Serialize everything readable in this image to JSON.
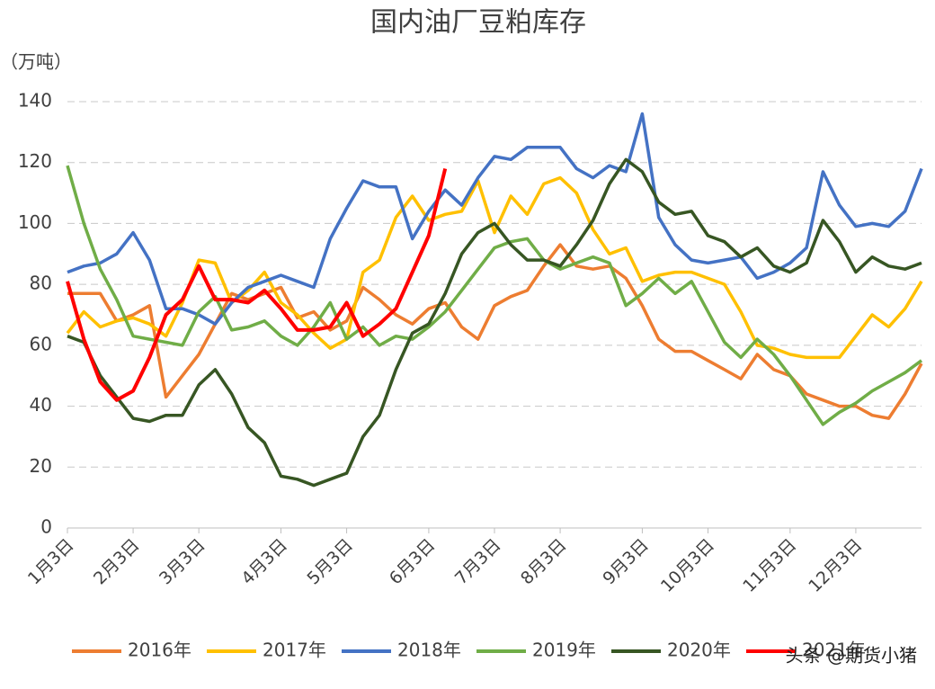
{
  "chart_data": {
    "type": "line",
    "title": "国内油厂豆粕库存",
    "y_label": "（万吨）",
    "categories": [
      "1月3日",
      null,
      null,
      null,
      "2月3日",
      null,
      null,
      null,
      "3月3日",
      null,
      null,
      null,
      null,
      "4月3日",
      null,
      null,
      null,
      "5月3日",
      null,
      null,
      null,
      null,
      "6月3日",
      null,
      null,
      null,
      "7月3日",
      null,
      null,
      null,
      "8月3日",
      null,
      null,
      null,
      null,
      "9月3日",
      null,
      null,
      null,
      "10月3日",
      null,
      null,
      null,
      null,
      "11月3日",
      null,
      null,
      null,
      "12月3日",
      null,
      null,
      null,
      null
    ],
    "ylim": [
      0,
      140
    ],
    "yticks": [
      0,
      20,
      40,
      60,
      80,
      100,
      120,
      140
    ],
    "grid": true,
    "legend": "bottom",
    "series": [
      {
        "name": "2016年",
        "color": "#ed7d31",
        "values": [
          77,
          77,
          77,
          68,
          70,
          73,
          43,
          50,
          57,
          67,
          77,
          75,
          77,
          79,
          69,
          71,
          65,
          68,
          79,
          75,
          70,
          67,
          72,
          74,
          66,
          62,
          73,
          76,
          78,
          86,
          93,
          86,
          85,
          86,
          82,
          73,
          62,
          58,
          58,
          55,
          52,
          49,
          57,
          52,
          50,
          44,
          42,
          40,
          40,
          37,
          36,
          44,
          54
        ]
      },
      {
        "name": "2017年",
        "color": "#ffc000",
        "values": [
          64,
          71,
          66,
          68,
          69,
          67,
          63,
          74,
          88,
          87,
          74,
          78,
          84,
          74,
          70,
          64,
          59,
          62,
          84,
          88,
          102,
          109,
          101,
          103,
          104,
          114,
          97,
          109,
          103,
          113,
          115,
          110,
          98,
          90,
          92,
          81,
          83,
          84,
          84,
          82,
          80,
          71,
          60,
          59,
          57,
          56,
          56,
          56,
          63,
          70,
          66,
          72,
          81
        ]
      },
      {
        "name": "2018年",
        "color": "#4472c4",
        "values": [
          84,
          86,
          87,
          90,
          97,
          88,
          72,
          72,
          70,
          67,
          74,
          79,
          81,
          83,
          81,
          79,
          95,
          105,
          114,
          112,
          112,
          95,
          104,
          111,
          106,
          115,
          122,
          121,
          125,
          125,
          125,
          118,
          115,
          119,
          117,
          136,
          102,
          93,
          88,
          87,
          88,
          89,
          82,
          84,
          87,
          92,
          117,
          106,
          99,
          100,
          99,
          104,
          118
        ]
      },
      {
        "name": "2019年",
        "color": "#70ad47",
        "values": [
          119,
          100,
          85,
          75,
          63,
          62,
          61,
          60,
          71,
          76,
          65,
          66,
          68,
          63,
          60,
          66,
          74,
          62,
          66,
          60,
          63,
          62,
          66,
          71,
          78,
          85,
          92,
          94,
          95,
          88,
          85,
          87,
          89,
          87,
          73,
          77,
          82,
          77,
          81,
          71,
          61,
          56,
          62,
          57,
          50,
          42,
          34,
          38,
          41,
          45,
          48,
          51,
          55
        ]
      },
      {
        "name": "2020年",
        "color": "#375623",
        "values": [
          63,
          61,
          50,
          43,
          36,
          35,
          37,
          37,
          47,
          52,
          44,
          33,
          28,
          17,
          16,
          14,
          16,
          18,
          30,
          37,
          52,
          64,
          67,
          77,
          90,
          97,
          100,
          93,
          88,
          88,
          86,
          93,
          101,
          113,
          121,
          117,
          107,
          103,
          104,
          96,
          94,
          89,
          92,
          86,
          84,
          87,
          101,
          94,
          84,
          89,
          86,
          85,
          87
        ]
      },
      {
        "name": "2021年",
        "color": "#ff0000",
        "values": [
          81,
          62,
          48,
          42,
          45,
          56,
          70,
          75,
          86,
          75,
          75,
          74,
          78,
          72,
          65,
          65,
          66,
          74,
          63,
          67,
          72,
          84,
          96,
          118,
          null,
          null,
          null,
          null,
          null,
          null,
          null,
          null,
          null,
          null,
          null,
          null,
          null,
          null,
          null,
          null,
          null,
          null,
          null,
          null,
          null,
          null,
          null,
          null,
          null,
          null,
          null,
          null,
          null
        ]
      }
    ],
    "watermark": "头条 @期货小猪"
  }
}
